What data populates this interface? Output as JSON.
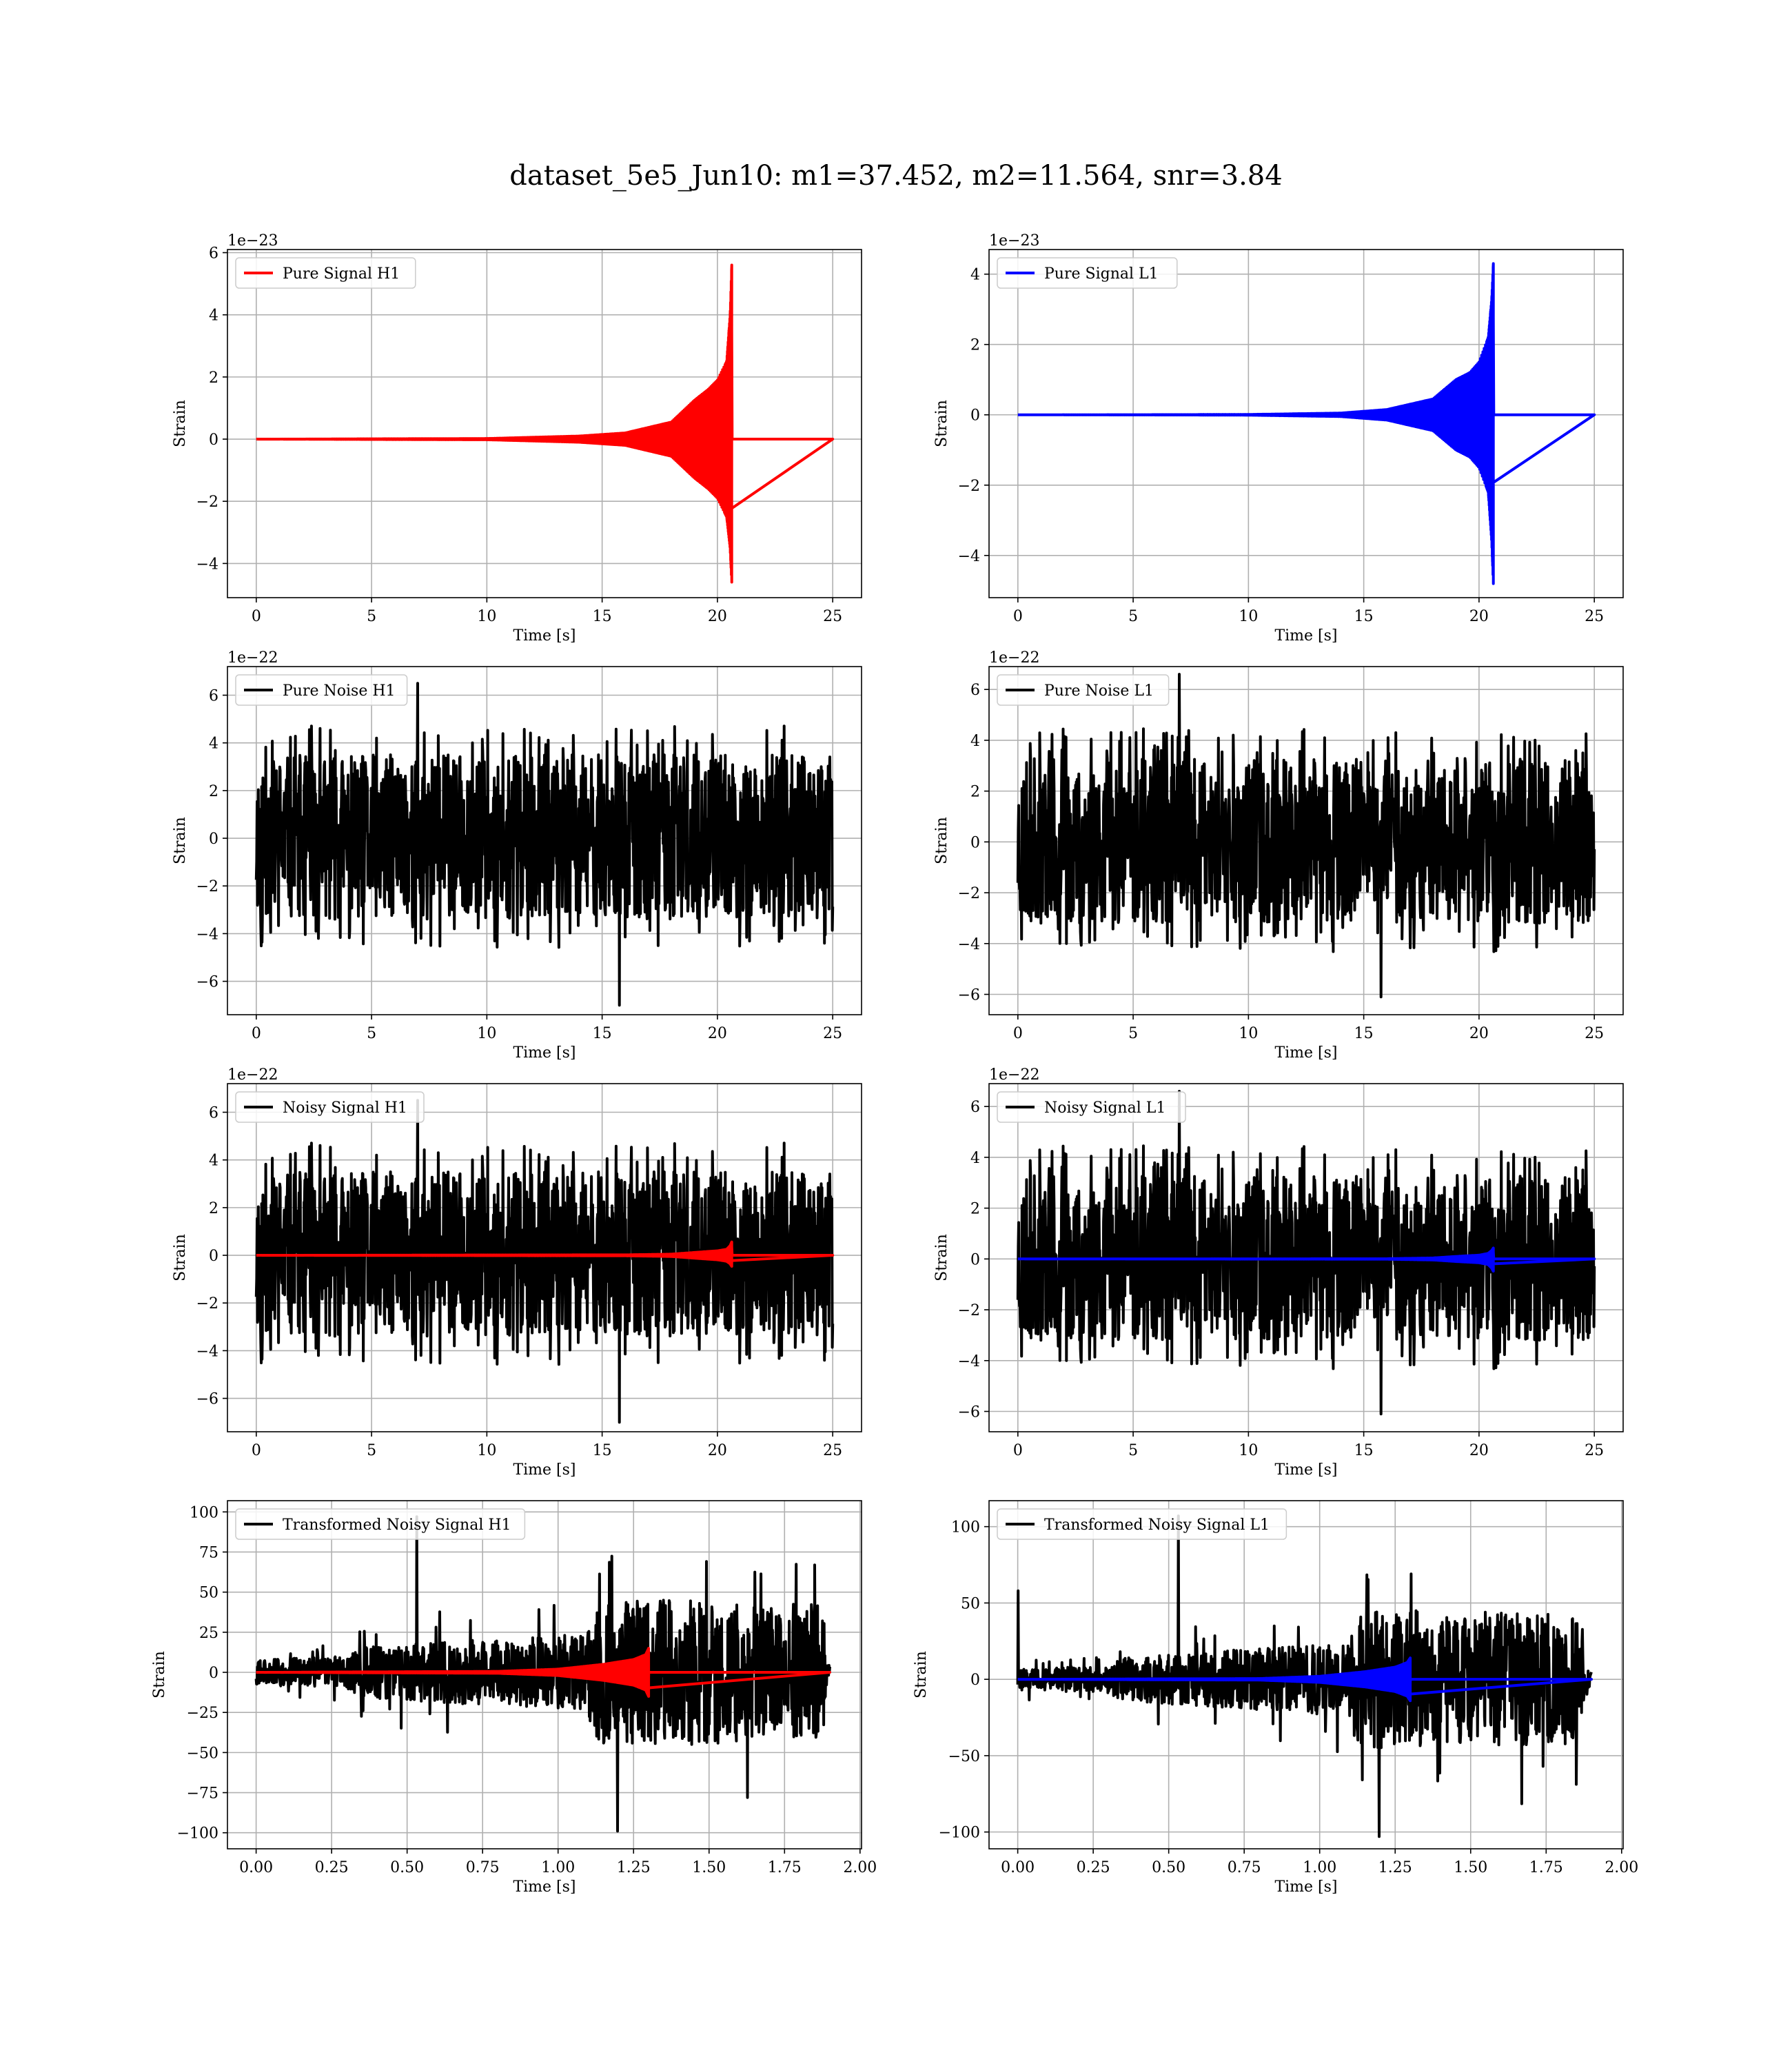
{
  "figure": {
    "suptitle": "dataset_5e5_Jun10: m1=37.452, m2=11.564, snr=3.84"
  },
  "colors": {
    "h1_signal": "#ff0000",
    "l1_signal": "#0000ff",
    "noise": "#000000",
    "grid": "#b0b0b0",
    "axes": "#000000"
  },
  "chart_data": [
    {
      "id": "pure-signal-h1",
      "type": "line",
      "grid": true,
      "legend": [
        "Pure Signal H1"
      ],
      "legend_loc": "upper-left",
      "xlabel": "Time [s]",
      "ylabel": "Strain",
      "offset_text": "1e−23",
      "xlim": [
        -1.25,
        26.25
      ],
      "ylim": [
        -5.1,
        6.1
      ],
      "xticks": [
        0,
        5,
        10,
        15,
        20,
        25
      ],
      "xtick_labels": [
        "0",
        "5",
        "10",
        "15",
        "20",
        "25"
      ],
      "yticks": [
        -4,
        -2,
        0,
        2,
        4,
        6
      ],
      "ytick_labels": [
        "−4",
        "−2",
        "0",
        "2",
        "4",
        "6"
      ],
      "series": [
        {
          "color_key": "h1_signal",
          "kind": "chirp",
          "x_start": 0,
          "x_end": 25,
          "t_merge": 20.62,
          "upper": [
            [
              0,
              0
            ],
            [
              10,
              0.02
            ],
            [
              14,
              0.1
            ],
            [
              16,
              0.2
            ],
            [
              18,
              0.55
            ],
            [
              19,
              1.25
            ],
            [
              19.6,
              1.6
            ],
            [
              20,
              1.9
            ],
            [
              20.4,
              2.5
            ],
            [
              20.55,
              4.0
            ],
            [
              20.62,
              5.6
            ]
          ],
          "lower": [
            [
              0,
              0
            ],
            [
              10,
              -0.02
            ],
            [
              14,
              -0.1
            ],
            [
              16,
              -0.2
            ],
            [
              18,
              -0.55
            ],
            [
              19,
              -1.25
            ],
            [
              19.6,
              -1.6
            ],
            [
              20,
              -1.9
            ],
            [
              20.4,
              -2.5
            ],
            [
              20.55,
              -3.5
            ],
            [
              20.62,
              -4.6
            ]
          ]
        }
      ]
    },
    {
      "id": "pure-signal-l1",
      "type": "line",
      "grid": true,
      "legend": [
        "Pure Signal L1"
      ],
      "legend_loc": "upper-left",
      "xlabel": "Time [s]",
      "ylabel": "Strain",
      "offset_text": "1e−23",
      "xlim": [
        -1.25,
        26.25
      ],
      "ylim": [
        -5.2,
        4.7
      ],
      "xticks": [
        0,
        5,
        10,
        15,
        20,
        25
      ],
      "xtick_labels": [
        "0",
        "5",
        "10",
        "15",
        "20",
        "25"
      ],
      "yticks": [
        -4,
        -2,
        0,
        2,
        4
      ],
      "ytick_labels": [
        "−4",
        "−2",
        "0",
        "2",
        "4"
      ],
      "series": [
        {
          "color_key": "l1_signal",
          "kind": "chirp",
          "x_start": 0,
          "x_end": 25,
          "t_merge": 20.62,
          "upper": [
            [
              0,
              0
            ],
            [
              10,
              0.01
            ],
            [
              14,
              0.05
            ],
            [
              16,
              0.15
            ],
            [
              18,
              0.45
            ],
            [
              19,
              1.0
            ],
            [
              19.6,
              1.2
            ],
            [
              20,
              1.5
            ],
            [
              20.4,
              2.2
            ],
            [
              20.55,
              3.3
            ],
            [
              20.62,
              4.3
            ]
          ],
          "lower": [
            [
              0,
              0
            ],
            [
              10,
              -0.01
            ],
            [
              14,
              -0.05
            ],
            [
              16,
              -0.15
            ],
            [
              18,
              -0.45
            ],
            [
              19,
              -1.0
            ],
            [
              19.6,
              -1.2
            ],
            [
              20,
              -1.5
            ],
            [
              20.4,
              -2.2
            ],
            [
              20.55,
              -3.6
            ],
            [
              20.62,
              -4.8
            ]
          ]
        }
      ]
    },
    {
      "id": "pure-noise-h1",
      "type": "line",
      "grid": true,
      "legend": [
        "Pure Noise H1"
      ],
      "legend_loc": "upper-left",
      "xlabel": "Time [s]",
      "ylabel": "Strain",
      "offset_text": "1e−22",
      "xlim": [
        -1.25,
        26.25
      ],
      "ylim": [
        -7.4,
        7.2
      ],
      "xticks": [
        0,
        5,
        10,
        15,
        20,
        25
      ],
      "xtick_labels": [
        "0",
        "5",
        "10",
        "15",
        "20",
        "25"
      ],
      "yticks": [
        -6,
        -4,
        -2,
        0,
        2,
        4,
        6
      ],
      "ytick_labels": [
        "−6",
        "−4",
        "−2",
        "0",
        "2",
        "4",
        "6"
      ],
      "series": [
        {
          "color_key": "noise",
          "kind": "noise",
          "x_start": 0,
          "x_end": 25,
          "band": [
            -3.4,
            3.5
          ],
          "peak_max": 6.5,
          "peak_min": -7.0,
          "seed": 11
        }
      ]
    },
    {
      "id": "pure-noise-l1",
      "type": "line",
      "grid": true,
      "legend": [
        "Pure Noise L1"
      ],
      "legend_loc": "upper-left",
      "xlabel": "Time [s]",
      "ylabel": "Strain",
      "offset_text": "1e−22",
      "xlim": [
        -1.25,
        26.25
      ],
      "ylim": [
        -6.8,
        6.9
      ],
      "xticks": [
        0,
        5,
        10,
        15,
        20,
        25
      ],
      "xtick_labels": [
        "0",
        "5",
        "10",
        "15",
        "20",
        "25"
      ],
      "yticks": [
        -6,
        -4,
        -2,
        0,
        2,
        4,
        6
      ],
      "ytick_labels": [
        "−6",
        "−4",
        "−2",
        "0",
        "2",
        "4",
        "6"
      ],
      "series": [
        {
          "color_key": "noise",
          "kind": "noise",
          "x_start": 0,
          "x_end": 25,
          "band": [
            -3.2,
            3.3
          ],
          "peak_max": 6.6,
          "peak_min": -6.1,
          "seed": 23
        }
      ]
    },
    {
      "id": "noisy-signal-h1",
      "type": "line",
      "grid": true,
      "legend": [
        "Noisy Signal H1"
      ],
      "legend_loc": "upper-left",
      "xlabel": "Time [s]",
      "ylabel": "Strain",
      "offset_text": "1e−22",
      "xlim": [
        -1.25,
        26.25
      ],
      "ylim": [
        -7.4,
        7.2
      ],
      "xticks": [
        0,
        5,
        10,
        15,
        20,
        25
      ],
      "xtick_labels": [
        "0",
        "5",
        "10",
        "15",
        "20",
        "25"
      ],
      "yticks": [
        -6,
        -4,
        -2,
        0,
        2,
        4,
        6
      ],
      "ytick_labels": [
        "−6",
        "−4",
        "−2",
        "0",
        "2",
        "4",
        "6"
      ],
      "series": [
        {
          "color_key": "noise",
          "kind": "noise",
          "x_start": 0,
          "x_end": 25,
          "band": [
            -3.4,
            3.5
          ],
          "peak_max": 6.5,
          "peak_min": -7.0,
          "seed": 11
        },
        {
          "color_key": "h1_signal",
          "kind": "chirp",
          "x_start": 0,
          "x_end": 25,
          "t_merge": 20.62,
          "upper": [
            [
              0,
              0
            ],
            [
              16,
              0.02
            ],
            [
              18,
              0.05
            ],
            [
              19,
              0.12
            ],
            [
              20,
              0.19
            ],
            [
              20.4,
              0.25
            ],
            [
              20.55,
              0.4
            ],
            [
              20.62,
              0.56
            ]
          ],
          "lower": [
            [
              0,
              0
            ],
            [
              16,
              -0.02
            ],
            [
              18,
              -0.05
            ],
            [
              19,
              -0.12
            ],
            [
              20,
              -0.19
            ],
            [
              20.4,
              -0.25
            ],
            [
              20.55,
              -0.35
            ],
            [
              20.62,
              -0.46
            ]
          ]
        }
      ]
    },
    {
      "id": "noisy-signal-l1",
      "type": "line",
      "grid": true,
      "legend": [
        "Noisy Signal L1"
      ],
      "legend_loc": "upper-left",
      "xlabel": "Time [s]",
      "ylabel": "Strain",
      "offset_text": "1e−22",
      "xlim": [
        -1.25,
        26.25
      ],
      "ylim": [
        -6.8,
        6.9
      ],
      "xticks": [
        0,
        5,
        10,
        15,
        20,
        25
      ],
      "xtick_labels": [
        "0",
        "5",
        "10",
        "15",
        "20",
        "25"
      ],
      "yticks": [
        -6,
        -4,
        -2,
        0,
        2,
        4,
        6
      ],
      "ytick_labels": [
        "−6",
        "−4",
        "−2",
        "0",
        "2",
        "4",
        "6"
      ],
      "series": [
        {
          "color_key": "noise",
          "kind": "noise",
          "x_start": 0,
          "x_end": 25,
          "band": [
            -3.2,
            3.3
          ],
          "peak_max": 6.6,
          "peak_min": -6.1,
          "seed": 23
        },
        {
          "color_key": "l1_signal",
          "kind": "chirp",
          "x_start": 0,
          "x_end": 25,
          "t_merge": 20.62,
          "upper": [
            [
              0,
              0
            ],
            [
              16,
              0.01
            ],
            [
              18,
              0.04
            ],
            [
              19,
              0.1
            ],
            [
              20,
              0.15
            ],
            [
              20.4,
              0.22
            ],
            [
              20.55,
              0.33
            ],
            [
              20.62,
              0.43
            ]
          ],
          "lower": [
            [
              0,
              0
            ],
            [
              16,
              -0.01
            ],
            [
              18,
              -0.04
            ],
            [
              19,
              -0.1
            ],
            [
              20,
              -0.15
            ],
            [
              20.4,
              -0.22
            ],
            [
              20.55,
              -0.36
            ],
            [
              20.62,
              -0.48
            ]
          ]
        }
      ]
    },
    {
      "id": "transformed-noisy-signal-h1",
      "type": "line",
      "grid": true,
      "legend": [
        "Transformed Noisy Signal H1"
      ],
      "legend_loc": "upper-left",
      "xlabel": "Time [s]",
      "ylabel": "Strain",
      "offset_text": "",
      "xlim": [
        -0.095,
        2.005
      ],
      "ylim": [
        -110,
        107
      ],
      "xticks": [
        0,
        0.25,
        0.5,
        0.75,
        1.0,
        1.25,
        1.5,
        1.75,
        2.0
      ],
      "xtick_labels": [
        "0.00",
        "0.25",
        "0.50",
        "0.75",
        "1.00",
        "1.25",
        "1.50",
        "1.75",
        "2.00"
      ],
      "yticks": [
        -100,
        -75,
        -50,
        -25,
        0,
        25,
        50,
        75,
        100
      ],
      "ytick_labels": [
        "−100",
        "−75",
        "−50",
        "−25",
        "0",
        "25",
        "50",
        "75",
        "100"
      ],
      "series": [
        {
          "color_key": "noise",
          "kind": "noise",
          "x_start": 0,
          "x_end": 1.9,
          "seed": 31,
          "envelope": [
            [
              0,
              8
            ],
            [
              0.3,
              10
            ],
            [
              0.35,
              16
            ],
            [
              0.7,
              20
            ],
            [
              0.95,
              22
            ],
            [
              1.1,
              25
            ],
            [
              1.12,
              45
            ],
            [
              1.5,
              45
            ],
            [
              1.88,
              42
            ],
            [
              1.89,
              6
            ],
            [
              1.9,
              6
            ]
          ],
          "peak_max": 97,
          "peak_min": -99
        },
        {
          "color_key": "h1_signal",
          "kind": "chirp",
          "x_start": 0,
          "x_end": 1.9,
          "t_merge": 1.3,
          "osc_hz": 60,
          "upper": [
            [
              0,
              0
            ],
            [
              0.8,
              0.6
            ],
            [
              1.0,
              2
            ],
            [
              1.15,
              5
            ],
            [
              1.25,
              8
            ],
            [
              1.29,
              11
            ],
            [
              1.3,
              15
            ]
          ],
          "lower": [
            [
              0,
              0
            ],
            [
              0.8,
              -0.6
            ],
            [
              1.0,
              -2
            ],
            [
              1.15,
              -5
            ],
            [
              1.25,
              -8
            ],
            [
              1.29,
              -11
            ],
            [
              1.3,
              -15
            ]
          ]
        }
      ]
    },
    {
      "id": "transformed-noisy-signal-l1",
      "type": "line",
      "grid": true,
      "legend": [
        "Transformed Noisy Signal L1"
      ],
      "legend_loc": "upper-left",
      "xlabel": "Time [s]",
      "ylabel": "Strain",
      "offset_text": "",
      "xlim": [
        -0.095,
        2.005
      ],
      "ylim": [
        -111,
        117
      ],
      "xticks": [
        0,
        0.25,
        0.5,
        0.75,
        1.0,
        1.25,
        1.5,
        1.75,
        2.0
      ],
      "xtick_labels": [
        "0.00",
        "0.25",
        "0.50",
        "0.75",
        "1.00",
        "1.25",
        "1.50",
        "1.75",
        "2.00"
      ],
      "yticks": [
        -100,
        -50,
        0,
        50,
        100
      ],
      "ytick_labels": [
        "−100",
        "−50",
        "0",
        "50",
        "100"
      ],
      "series": [
        {
          "color_key": "noise",
          "kind": "noise",
          "x_start": 0,
          "x_end": 1.9,
          "seed": 47,
          "envelope": [
            [
              0,
              7
            ],
            [
              0.3,
              9
            ],
            [
              0.35,
              14
            ],
            [
              0.7,
              19
            ],
            [
              0.95,
              22
            ],
            [
              1.1,
              25
            ],
            [
              1.12,
              45
            ],
            [
              1.5,
              45
            ],
            [
              1.87,
              42
            ],
            [
              1.88,
              6
            ],
            [
              1.9,
              6
            ]
          ],
          "peak_max": 107,
          "peak_min": -103,
          "spike_start": 58
        },
        {
          "color_key": "l1_signal",
          "kind": "chirp",
          "x_start": 0,
          "x_end": 1.9,
          "t_merge": 1.3,
          "osc_hz": 60,
          "upper": [
            [
              0,
              0
            ],
            [
              0.8,
              0.5
            ],
            [
              1.0,
              2
            ],
            [
              1.15,
              5
            ],
            [
              1.25,
              8
            ],
            [
              1.29,
              11
            ],
            [
              1.3,
              14
            ]
          ],
          "lower": [
            [
              0,
              0
            ],
            [
              0.8,
              -0.5
            ],
            [
              1.0,
              -2
            ],
            [
              1.15,
              -5
            ],
            [
              1.25,
              -8
            ],
            [
              1.29,
              -11
            ],
            [
              1.3,
              -14
            ]
          ]
        }
      ]
    }
  ]
}
